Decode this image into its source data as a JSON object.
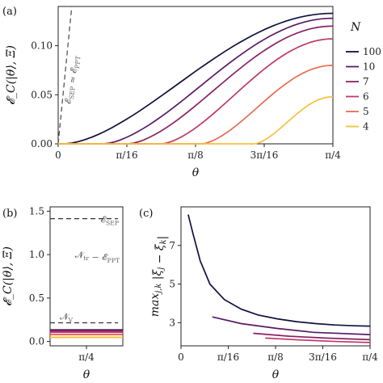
{
  "chart_data": [
    {
      "type": "line",
      "panel": "(a)",
      "xlabel": "θ",
      "ylabel": "𝓔_C(|θ⟩, Ξ)",
      "xlim": [
        0,
        0.7854
      ],
      "ylim": [
        0,
        0.14
      ],
      "xticks": [
        {
          "value": 0,
          "label": "0"
        },
        {
          "value": 0.19635,
          "label": "π/16"
        },
        {
          "value": 0.3927,
          "label": "π/8"
        },
        {
          "value": 0.58905,
          "label": "3π/16"
        },
        {
          "value": 0.7854,
          "label": "π/4"
        }
      ],
      "yticks": [
        {
          "value": 0,
          "label": "0.00"
        },
        {
          "value": 0.05,
          "label": "0.05"
        },
        {
          "value": 0.1,
          "label": "0.10"
        }
      ],
      "legend_title": "N",
      "legend_position": "right",
      "grid": false,
      "series": [
        {
          "name": "100",
          "color": "#10103e",
          "onset": 0.02,
          "max": 0.133
        },
        {
          "name": "10",
          "color": "#5a1a66",
          "onset": 0.13,
          "max": 0.128
        },
        {
          "name": "7",
          "color": "#8a2168",
          "onset": 0.2,
          "max": 0.12
        },
        {
          "name": "6",
          "color": "#c0386a",
          "onset": 0.295,
          "max": 0.107
        },
        {
          "name": "5",
          "color": "#ea6a52",
          "onset": 0.41,
          "max": 0.08
        },
        {
          "name": "4",
          "color": "#f8c03d",
          "onset": 0.56,
          "max": 0.048
        }
      ],
      "reference_line": {
        "label": "𝓔_SEP ≈ 𝓔_PPT",
        "slope": 3.6
      }
    },
    {
      "type": "bar",
      "panel": "(b)",
      "xlabel": "θ",
      "ylabel": "𝓔_C(|θ⟩, Ξ)",
      "ylim": [
        -0.05,
        1.55
      ],
      "xticks": [
        {
          "label": "π/4"
        }
      ],
      "yticks": [
        {
          "value": 0.0,
          "label": "0.0"
        },
        {
          "value": 0.5,
          "label": "0.5"
        },
        {
          "value": 1.0,
          "label": "1.0"
        },
        {
          "value": 1.5,
          "label": "1.5"
        }
      ],
      "hlines": [
        {
          "value": 1.414,
          "label": "𝓔_SEP",
          "style": "dashed"
        },
        {
          "value": 1.0,
          "label": "𝓝_tr − 𝓔_PPT",
          "style": "none"
        },
        {
          "value": 0.215,
          "label": "𝓝_V",
          "style": "dashed"
        }
      ],
      "levels": [
        0.133,
        0.128,
        0.12,
        0.107,
        0.08,
        0.048
      ]
    },
    {
      "type": "line",
      "panel": "(c)",
      "xlabel": "θ",
      "ylabel": "max_{j,k} |ξ_j − ξ_k|",
      "xlim": [
        0,
        0.7854
      ],
      "ylim": [
        1.8,
        9.0
      ],
      "xticks": [
        {
          "value": 0,
          "label": "0"
        },
        {
          "value": 0.19635,
          "label": "π/16"
        },
        {
          "value": 0.3927,
          "label": "π/8"
        },
        {
          "value": 0.58905,
          "label": "3π/16"
        },
        {
          "value": 0.7854,
          "label": "π/4"
        }
      ],
      "yticks": [
        {
          "value": 3,
          "label": "3"
        },
        {
          "value": 5,
          "label": "5"
        },
        {
          "value": 7,
          "label": "7"
        }
      ],
      "series": [
        {
          "name": "100",
          "color": "#10103e",
          "x": [
            0.03,
            0.05,
            0.08,
            0.12,
            0.18,
            0.25,
            0.32,
            0.4,
            0.48,
            0.56,
            0.64,
            0.72,
            0.7854
          ],
          "y": [
            8.6,
            7.6,
            6.2,
            5.0,
            4.2,
            3.7,
            3.4,
            3.2,
            3.05,
            2.95,
            2.88,
            2.84,
            2.82
          ]
        },
        {
          "name": "10",
          "color": "#5a1a66",
          "x": [
            0.13,
            0.25,
            0.4,
            0.55,
            0.7854
          ],
          "y": [
            3.3,
            2.95,
            2.7,
            2.5,
            2.38
          ]
        },
        {
          "name": "7",
          "color": "#8a2168",
          "x": [
            0.3,
            0.45,
            0.6,
            0.7854
          ],
          "y": [
            2.45,
            2.3,
            2.2,
            2.12
          ]
        },
        {
          "name": "6",
          "color": "#c0386a",
          "x": [
            0.35,
            0.5,
            0.65,
            0.7854
          ],
          "y": [
            2.2,
            2.1,
            2.02,
            1.97
          ]
        }
      ]
    }
  ]
}
